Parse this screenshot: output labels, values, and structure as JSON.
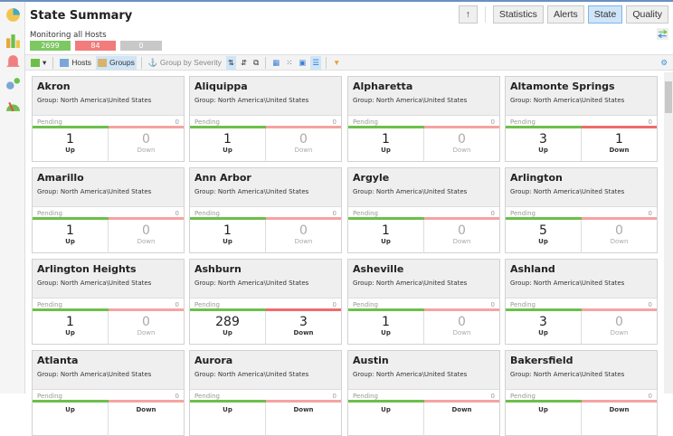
{
  "header": {
    "title": "State Summary",
    "subtitle": "Monitoring all Hosts",
    "counts": {
      "up": "2699",
      "down": "84",
      "pending": "0"
    }
  },
  "nav": {
    "up_arrow": "↑",
    "statistics": "Statistics",
    "alerts": "Alerts",
    "state": "State",
    "quality": "Quality",
    "active": "State"
  },
  "toolbar": {
    "hosts": "Hosts",
    "groups": "Groups",
    "group_by_severity": "Group by Severity"
  },
  "colors": {
    "up": "#6cc04a",
    "down": "#f06b6b",
    "down_light": "#f5a3a3",
    "pending": "#c8c8c8"
  },
  "card_labels": {
    "pending": "Pending",
    "up": "Up",
    "down": "Down"
  },
  "cards": [
    {
      "name": "Akron",
      "group": "Group: North America\\United States",
      "pending": "0",
      "up": "1",
      "down": "0"
    },
    {
      "name": "Aliquippa",
      "group": "Group: North America\\United States",
      "pending": "0",
      "up": "1",
      "down": "0"
    },
    {
      "name": "Alpharetta",
      "group": "Group: North America\\United States",
      "pending": "0",
      "up": "1",
      "down": "0"
    },
    {
      "name": "Altamonte Springs",
      "group": "Group: North America\\United States",
      "pending": "0",
      "up": "3",
      "down": "1"
    },
    {
      "name": "Amarillo",
      "group": "Group: North America\\United States",
      "pending": "0",
      "up": "1",
      "down": "0"
    },
    {
      "name": "Ann Arbor",
      "group": "Group: North America\\United States",
      "pending": "0",
      "up": "1",
      "down": "0"
    },
    {
      "name": "Argyle",
      "group": "Group: North America\\United States",
      "pending": "0",
      "up": "1",
      "down": "0"
    },
    {
      "name": "Arlington",
      "group": "Group: North America\\United States",
      "pending": "0",
      "up": "5",
      "down": "0"
    },
    {
      "name": "Arlington Heights",
      "group": "Group: North America\\United States",
      "pending": "0",
      "up": "1",
      "down": "0"
    },
    {
      "name": "Ashburn",
      "group": "Group: North America\\United States",
      "pending": "0",
      "up": "289",
      "down": "3"
    },
    {
      "name": "Asheville",
      "group": "Group: North America\\United States",
      "pending": "0",
      "up": "1",
      "down": "0"
    },
    {
      "name": "Ashland",
      "group": "Group: North America\\United States",
      "pending": "0",
      "up": "3",
      "down": "0"
    },
    {
      "name": "Atlanta",
      "group": "Group: North America\\United States",
      "pending": "0",
      "up": "",
      "down": ""
    },
    {
      "name": "Aurora",
      "group": "Group: North America\\United States",
      "pending": "0",
      "up": "",
      "down": ""
    },
    {
      "name": "Austin",
      "group": "Group: North America\\United States",
      "pending": "0",
      "up": "",
      "down": ""
    },
    {
      "name": "Bakersfield",
      "group": "Group: North America\\United States",
      "pending": "0",
      "up": "",
      "down": ""
    }
  ]
}
